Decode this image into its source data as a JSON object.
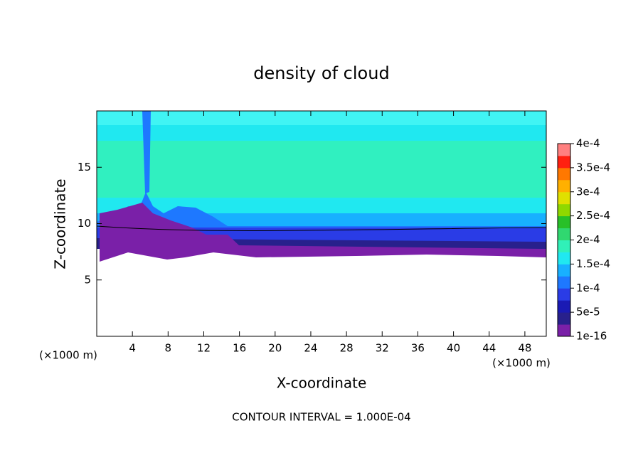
{
  "chart_data": {
    "type": "contour",
    "title": "density of cloud",
    "xlabel": "X-coordinate",
    "ylabel": "Z-coordinate",
    "x_unit": "(×1000 m)",
    "note": "CONTOUR INTERVAL = 1.000E-04",
    "xlim": [
      0,
      50.4
    ],
    "ylim": [
      0,
      20
    ],
    "xticks": [
      4,
      8,
      12,
      16,
      20,
      24,
      28,
      32,
      36,
      40,
      44,
      48
    ],
    "yticks": [
      5,
      10,
      15
    ],
    "colorbar": {
      "lim": [
        1e-16,
        0.0004
      ],
      "ticks": [
        {
          "value": 1e-16,
          "label": "1e-16"
        },
        {
          "value": 5e-05,
          "label": "5e-5"
        },
        {
          "value": 0.0001,
          "label": "1e-4"
        },
        {
          "value": 0.00015,
          "label": "1.5e-4"
        },
        {
          "value": 0.0002,
          "label": "2e-4"
        },
        {
          "value": 0.00025,
          "label": "2.5e-4"
        },
        {
          "value": 0.0003,
          "label": "3e-4"
        },
        {
          "value": 0.00035,
          "label": "3.5e-4"
        },
        {
          "value": 0.0004,
          "label": "4e-4"
        }
      ],
      "colors": [
        "#7a20a8",
        "#28208c",
        "#1a1ab4",
        "#2a3ce6",
        "#1e78ff",
        "#18b0ff",
        "#20e8f0",
        "#30f0b8",
        "#30d870",
        "#28c028",
        "#90d800",
        "#e0e000",
        "#ffb000",
        "#ff7800",
        "#ff2010",
        "#ff8080"
      ]
    }
  }
}
